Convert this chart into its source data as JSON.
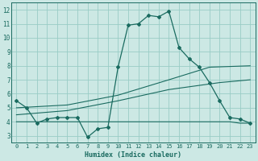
{
  "xlabel": "Humidex (Indice chaleur)",
  "background_color": "#cce8e4",
  "grid_color": "#99ccc6",
  "line_color": "#1a6b60",
  "xlim": [
    -0.5,
    23.5
  ],
  "ylim": [
    2.5,
    12.5
  ],
  "xticks": [
    0,
    1,
    2,
    3,
    4,
    5,
    6,
    7,
    8,
    9,
    10,
    11,
    12,
    13,
    14,
    15,
    16,
    17,
    18,
    19,
    20,
    21,
    22,
    23
  ],
  "yticks": [
    3,
    4,
    5,
    6,
    7,
    8,
    9,
    10,
    11,
    12
  ],
  "series1_x": [
    0,
    1,
    2,
    3,
    4,
    5,
    6,
    7,
    8,
    9,
    10,
    11,
    12,
    13,
    14,
    15,
    16,
    17,
    18,
    19,
    20,
    21,
    22,
    23
  ],
  "series1_y": [
    5.5,
    5.0,
    3.9,
    4.2,
    4.3,
    4.3,
    4.3,
    2.9,
    3.5,
    3.6,
    7.9,
    10.9,
    11.0,
    11.6,
    11.5,
    11.9,
    9.3,
    8.5,
    7.9,
    6.8,
    5.5,
    4.3,
    4.2,
    3.9
  ],
  "series2_x": [
    0,
    1,
    2,
    3,
    4,
    5,
    6,
    7,
    8,
    9,
    10,
    11,
    12,
    13,
    14,
    15,
    16,
    17,
    18,
    19,
    20,
    21,
    22,
    23
  ],
  "series2_y": [
    4.0,
    4.0,
    4.0,
    4.0,
    4.0,
    4.0,
    4.0,
    4.0,
    4.0,
    4.0,
    4.0,
    4.0,
    4.0,
    4.0,
    4.0,
    4.0,
    4.0,
    4.0,
    4.0,
    4.0,
    4.0,
    4.0,
    3.9,
    3.9
  ],
  "series3_x": [
    0,
    5,
    10,
    15,
    20,
    23
  ],
  "series3_y": [
    4.5,
    4.8,
    5.5,
    6.3,
    6.8,
    7.0
  ],
  "series4_x": [
    0,
    5,
    10,
    15,
    19,
    23
  ],
  "series4_y": [
    5.0,
    5.2,
    5.9,
    7.0,
    7.9,
    8.0
  ]
}
